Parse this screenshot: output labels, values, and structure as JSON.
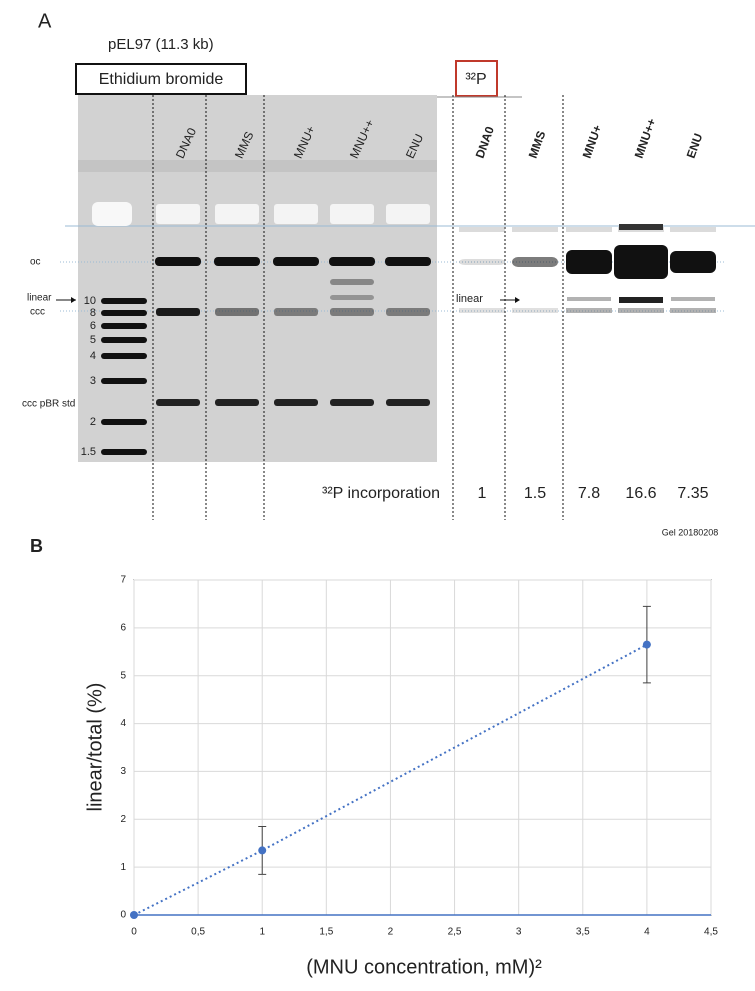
{
  "panel_a": {
    "panel": "A",
    "plasmid": "pEL97 (11.3 kb)",
    "stain_label": "Ethidium bromide",
    "radio_label": "³²P",
    "gel_lanes": [
      "DNA0",
      "MMS",
      "MNU+",
      "MNU++",
      "ENU"
    ],
    "radio_lanes": [
      "DNA0",
      "MMS",
      "MNU+",
      "MNU++",
      "ENU"
    ],
    "band_labels": [
      "oc",
      "linear",
      "ccc",
      "ccc pBR std"
    ],
    "ladder": [
      10,
      8,
      6,
      5,
      4,
      3,
      2,
      1.5
    ],
    "radio_band_label": "linear",
    "incorporation_label": "³²P incorporation",
    "incorporation": [
      1,
      1.5,
      7.8,
      16.6,
      7.35
    ],
    "gel_id": "Gel 20180208"
  },
  "chart_data": {
    "type": "scatter",
    "panel": "B",
    "x": [
      0,
      1,
      4
    ],
    "values": [
      0,
      1.35,
      5.65
    ],
    "errors": [
      0,
      0.5,
      0.8
    ],
    "color": "#4472c4",
    "xlim": [
      0,
      4.5
    ],
    "ylim": [
      0,
      7
    ],
    "xticks": [
      0,
      {
        "value": 0.5,
        "label": "0,5"
      },
      1,
      {
        "value": 1.5,
        "label": "1,5"
      },
      2,
      {
        "value": 2.5,
        "label": "2,5"
      },
      3,
      {
        "value": 3.5,
        "label": "3,5"
      },
      4,
      {
        "value": 4.5,
        "label": "4,5"
      }
    ],
    "yticks": [
      0,
      1,
      2,
      3,
      4,
      5,
      6,
      7
    ],
    "grid": true,
    "x_label": "(MNU concentration, mM)²",
    "y_label": "linear/total (%)"
  }
}
